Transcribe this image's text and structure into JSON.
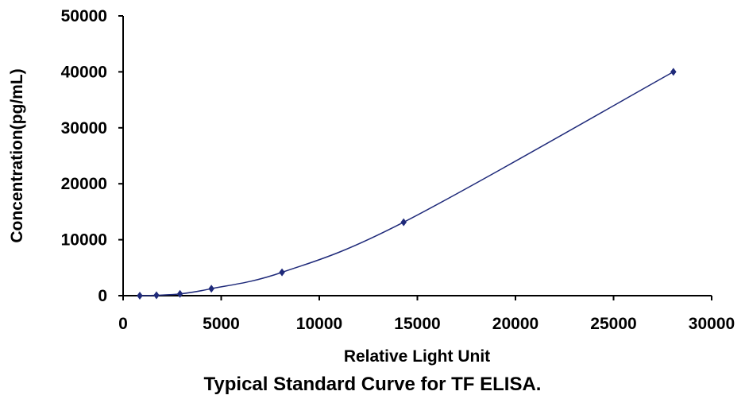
{
  "caption": "Typical Standard Curve for TF ELISA.",
  "chart_data": {
    "type": "scatter",
    "title": "",
    "xlabel": "Relative Light Unit",
    "ylabel": "Concentration(pg/mL)",
    "xlim": [
      0,
      30000
    ],
    "ylim": [
      0,
      50000
    ],
    "xticks": [
      0,
      5000,
      10000,
      15000,
      20000,
      25000,
      30000
    ],
    "yticks": [
      0,
      10000,
      20000,
      30000,
      40000,
      50000
    ],
    "grid": false,
    "legend": "none",
    "series": [
      {
        "marker": "diamond",
        "fitted_curve": true,
        "color": "#1f2a7a",
        "x": [
          850,
          1700,
          2900,
          4500,
          8100,
          14300,
          28050
        ],
        "y": [
          0,
          78,
          312,
          1250,
          4170,
          13130,
          40000
        ]
      }
    ]
  }
}
